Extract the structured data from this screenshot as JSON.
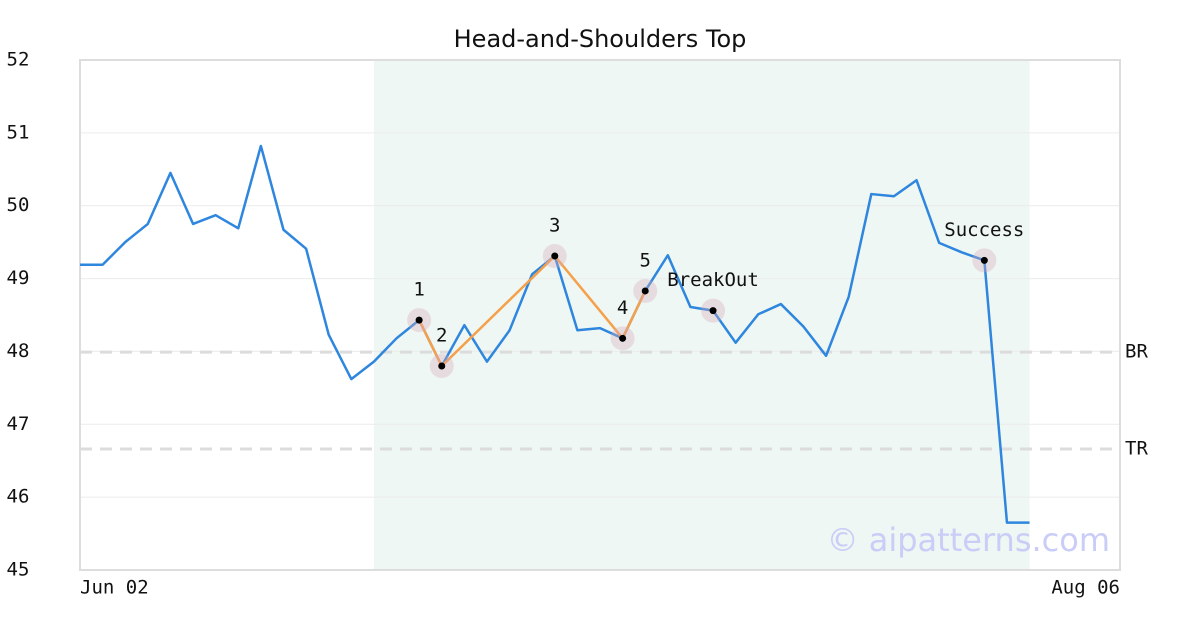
{
  "chart_data": {
    "type": "line",
    "title": "Head-and-Shoulders Top",
    "categories": [
      "Jun 02",
      null,
      null,
      null,
      null,
      null,
      null,
      null,
      null,
      null,
      null,
      null,
      null,
      null,
      null,
      null,
      null,
      null,
      null,
      null,
      null,
      null,
      null,
      null,
      null,
      null,
      null,
      null,
      null,
      null,
      null,
      null,
      null,
      null,
      null,
      null,
      null,
      null,
      null,
      null,
      null,
      null,
      null,
      null,
      null,
      null,
      "Aug 06"
    ],
    "values": [
      49.19,
      49.19,
      49.5,
      49.75,
      50.45,
      49.75,
      49.87,
      49.69,
      50.82,
      49.67,
      49.41,
      48.23,
      47.62,
      47.86,
      48.18,
      48.43,
      47.8,
      48.36,
      47.86,
      48.29,
      49.06,
      49.31,
      48.29,
      48.32,
      48.18,
      48.83,
      49.32,
      48.61,
      48.56,
      48.12,
      48.51,
      48.65,
      48.34,
      47.94,
      48.75,
      50.16,
      50.13,
      50.35,
      49.49,
      49.36,
      49.25,
      45.65,
      45.65,
      null,
      null,
      null,
      null
    ],
    "color": "#2e86de",
    "ylim": [
      45,
      52
    ],
    "yticks": [
      45,
      46,
      47,
      48,
      49,
      50,
      51,
      52
    ],
    "grid": true,
    "highlight": {
      "x": [
        13,
        42
      ],
      "color": "#eef7f3"
    },
    "pattern": {
      "color": "#f5a04a",
      "points": [
        {
          "label": "1",
          "x": 15,
          "value": 48.43
        },
        {
          "label": "2",
          "x": 16,
          "value": 47.8
        },
        {
          "label": "3",
          "x": 21,
          "value": 49.31
        },
        {
          "label": "4",
          "x": 24,
          "value": 48.18
        },
        {
          "label": "5",
          "x": 25,
          "value": 48.83
        }
      ]
    },
    "markers": [
      {
        "label": "BreakOut",
        "x": 28,
        "value": 48.56
      },
      {
        "label": "Success",
        "x": 40,
        "value": 49.25
      }
    ],
    "hlines": [
      {
        "label": "BR",
        "value": 47.99
      },
      {
        "label": "TR",
        "value": 46.66
      }
    ],
    "watermark": "© aipatterns.com"
  }
}
